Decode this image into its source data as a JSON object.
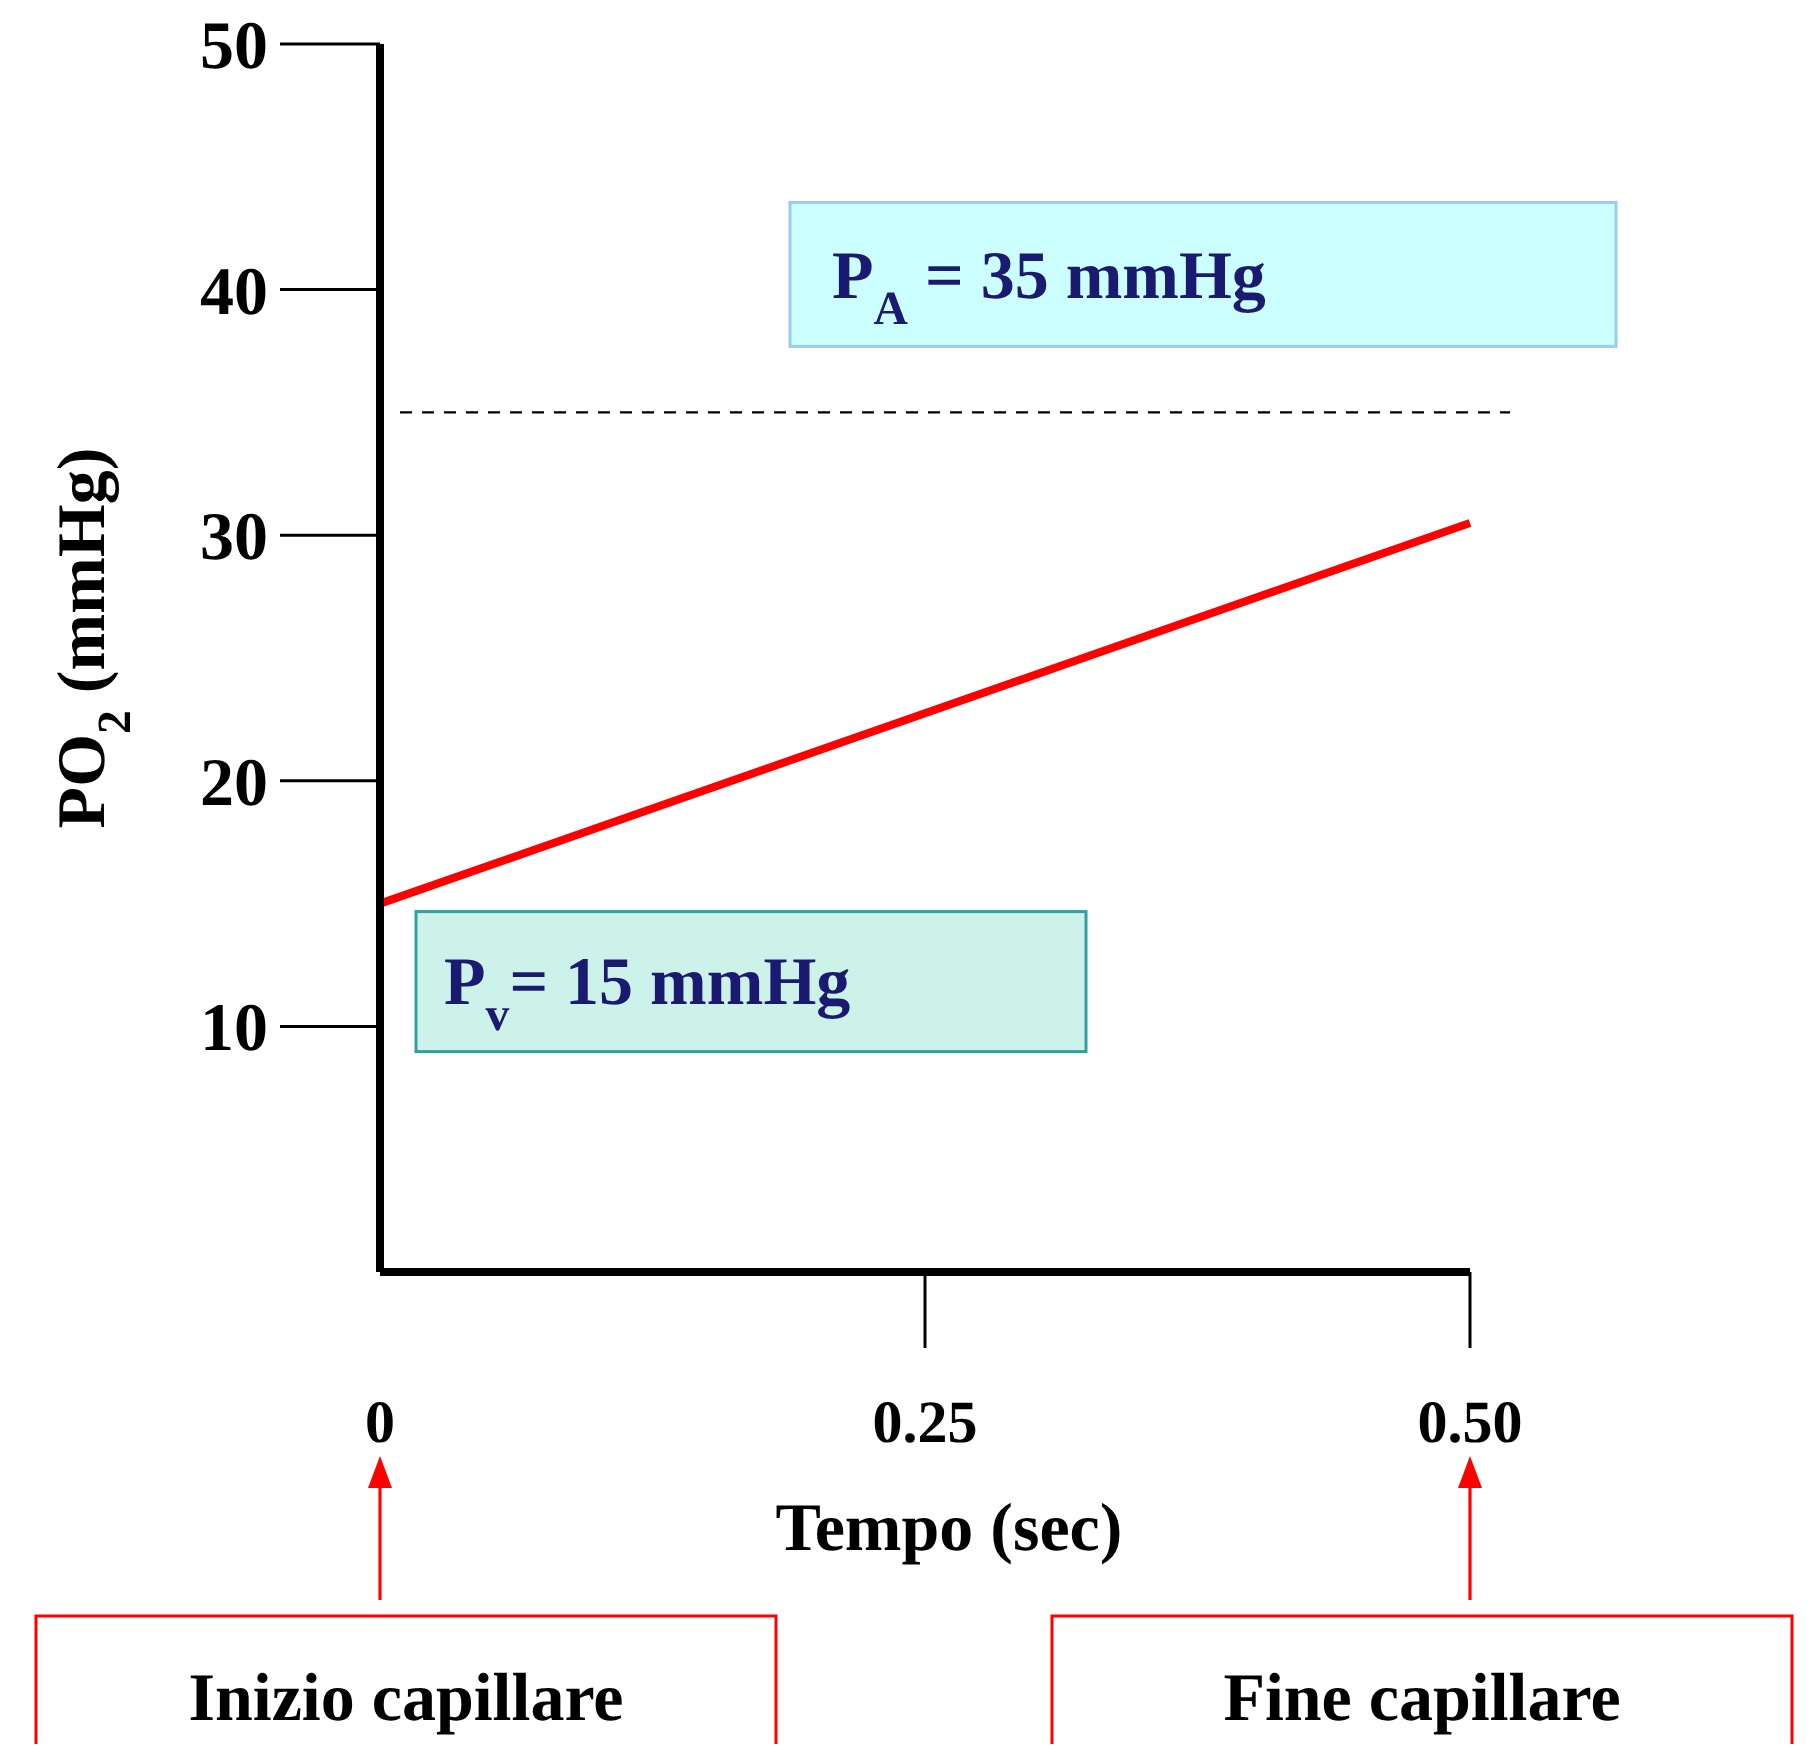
{
  "chart_data": {
    "type": "line",
    "xlabel": "Tempo (sec)",
    "ylabel": "PO$_{2}$ (mmHg)",
    "x": [
      0,
      0.5
    ],
    "series": [
      {
        "color": "#ff0000",
        "values": [
          15,
          30.5
        ]
      }
    ],
    "xlim": [
      0,
      0.5
    ],
    "ylim": [
      0,
      50
    ],
    "xticks": [
      0,
      0.25,
      {
        "value": 0.5,
        "label": "0.50"
      }
    ],
    "yticks": [
      10,
      20,
      30,
      40,
      50
    ],
    "grid": false,
    "marker": "none",
    "line_style": "solid",
    "ref_lines": [
      {
        "axis": "y",
        "value": 35,
        "label": "P$_{A}$ = 35 mmHg",
        "color": "#000000",
        "line_style": "dashed"
      }
    ],
    "annotations": [
      {
        "text": "P$_{v}$= 15 mmHg",
        "x": 0,
        "y": 15
      },
      "Inizio capillare",
      "Fine capillare"
    ]
  }
}
